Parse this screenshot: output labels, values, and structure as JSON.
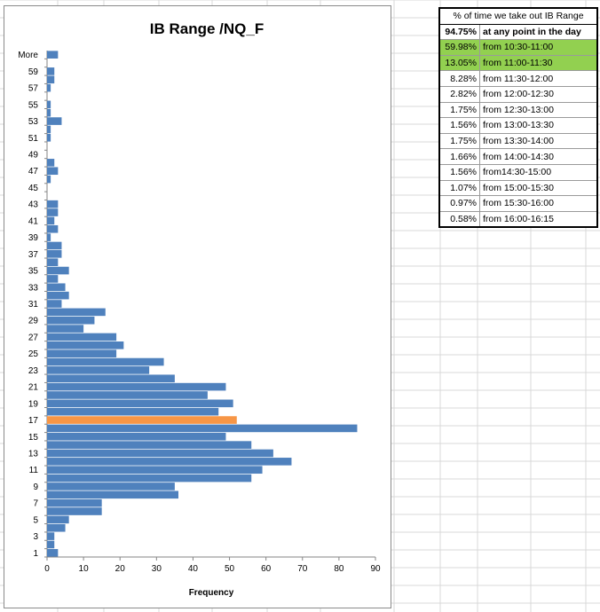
{
  "colors": {
    "bar": "#4f81bd",
    "highlight_bar": "#f79646",
    "table_highlight": "#92d050",
    "gridline": "#d9d9d9"
  },
  "chart_data": {
    "type": "bar",
    "orientation": "horizontal",
    "title": "IB Range /NQ_F",
    "xlabel": "Frequency",
    "ylabel": "",
    "xlim": [
      0,
      90
    ],
    "xticks": [
      0,
      10,
      20,
      30,
      40,
      50,
      60,
      70,
      80,
      90
    ],
    "grid": false,
    "legend": "none",
    "categories": [
      "1",
      "2",
      "3",
      "4",
      "5",
      "6",
      "7",
      "8",
      "9",
      "10",
      "11",
      "12",
      "13",
      "14",
      "15",
      "16",
      "17",
      "18",
      "19",
      "20",
      "21",
      "22",
      "23",
      "24",
      "25",
      "26",
      "27",
      "28",
      "29",
      "30",
      "31",
      "32",
      "33",
      "34",
      "35",
      "36",
      "37",
      "38",
      "39",
      "40",
      "41",
      "42",
      "43",
      "44",
      "45",
      "46",
      "47",
      "48",
      "49",
      "50",
      "51",
      "52",
      "53",
      "54",
      "55",
      "56",
      "57",
      "58",
      "59",
      "60",
      "More"
    ],
    "tick_labels": [
      "1",
      "",
      "3",
      "",
      "5",
      "",
      "7",
      "",
      "9",
      "",
      "11",
      "",
      "13",
      "",
      "15",
      "",
      "17",
      "",
      "19",
      "",
      "21",
      "",
      "23",
      "",
      "25",
      "",
      "27",
      "",
      "29",
      "",
      "31",
      "",
      "33",
      "",
      "35",
      "",
      "37",
      "",
      "39",
      "",
      "41",
      "",
      "43",
      "",
      "45",
      "",
      "47",
      "",
      "49",
      "",
      "51",
      "",
      "53",
      "",
      "55",
      "",
      "57",
      "",
      "59",
      "",
      "More"
    ],
    "values": [
      3,
      2,
      2,
      5,
      6,
      15,
      15,
      36,
      35,
      56,
      59,
      67,
      62,
      56,
      49,
      85,
      52,
      47,
      51,
      44,
      49,
      35,
      28,
      32,
      19,
      21,
      19,
      10,
      13,
      16,
      4,
      6,
      5,
      3,
      6,
      3,
      4,
      4,
      1,
      3,
      2,
      3,
      3,
      0,
      0,
      1,
      3,
      2,
      0,
      0,
      1,
      1,
      4,
      1,
      1,
      0,
      1,
      2,
      2,
      0,
      3
    ],
    "highlight_category": "17"
  },
  "table": {
    "header": "% of time we take out IB Range",
    "rows": [
      {
        "pct": "94.75%",
        "text": "at any point in the day",
        "bold": true,
        "highlight": false
      },
      {
        "pct": "59.98%",
        "text": "from 10:30-11:00",
        "bold": false,
        "highlight": true
      },
      {
        "pct": "13.05%",
        "text": "from 11:00-11:30",
        "bold": false,
        "highlight": true
      },
      {
        "pct": "8.28%",
        "text": "from 11:30-12:00",
        "bold": false,
        "highlight": false
      },
      {
        "pct": "2.82%",
        "text": "from 12:00-12:30",
        "bold": false,
        "highlight": false
      },
      {
        "pct": "1.75%",
        "text": "from 12:30-13:00",
        "bold": false,
        "highlight": false
      },
      {
        "pct": "1.56%",
        "text": "from 13:00-13:30",
        "bold": false,
        "highlight": false
      },
      {
        "pct": "1.75%",
        "text": "from 13:30-14:00",
        "bold": false,
        "highlight": false
      },
      {
        "pct": "1.66%",
        "text": "from 14:00-14:30",
        "bold": false,
        "highlight": false
      },
      {
        "pct": "1.56%",
        "text": "from14:30-15:00",
        "bold": false,
        "highlight": false
      },
      {
        "pct": "1.07%",
        "text": "from 15:00-15:30",
        "bold": false,
        "highlight": false
      },
      {
        "pct": "0.97%",
        "text": "from 15:30-16:00",
        "bold": false,
        "highlight": false
      },
      {
        "pct": "0.58%",
        "text": "from 16:00-16:15",
        "bold": false,
        "highlight": false
      }
    ]
  }
}
